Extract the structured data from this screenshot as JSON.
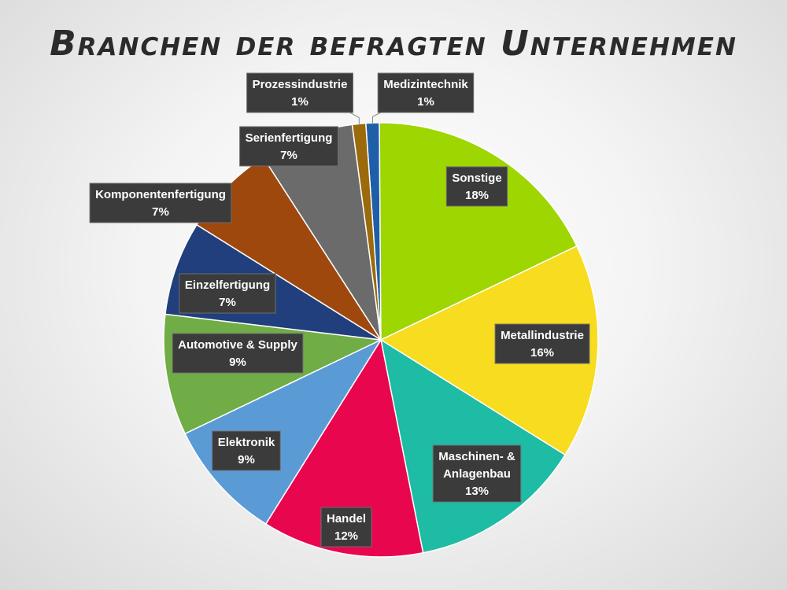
{
  "chart_data": {
    "type": "pie",
    "title": "Branchen der befragten Unternehmen",
    "slices": [
      {
        "label": "Medizintechnik",
        "lines": [
          "Medizintechnik"
        ],
        "value": 1,
        "percent_label": "1%",
        "color": "#1f5fa8"
      },
      {
        "label": "Sonstige",
        "lines": [
          "Sonstige"
        ],
        "value": 18,
        "percent_label": "18%",
        "color": "#9dd600"
      },
      {
        "label": "Metallindustrie",
        "lines": [
          "Metallindustrie"
        ],
        "value": 16,
        "percent_label": "16%",
        "color": "#f7dc1f"
      },
      {
        "label": "Maschinen- & Anlagenbau",
        "lines": [
          "Maschinen- &",
          "Anlagenbau"
        ],
        "value": 13,
        "percent_label": "13%",
        "color": "#1ebba5"
      },
      {
        "label": "Handel",
        "lines": [
          "Handel"
        ],
        "value": 12,
        "percent_label": "12%",
        "color": "#e8064f"
      },
      {
        "label": "Elektronik",
        "lines": [
          "Elektronik"
        ],
        "value": 9,
        "percent_label": "9%",
        "color": "#5b9bd5"
      },
      {
        "label": "Automotive & Supply",
        "lines": [
          "Automotive & Supply"
        ],
        "value": 9,
        "percent_label": "9%",
        "color": "#70ad47"
      },
      {
        "label": "Einzelfertigung",
        "lines": [
          "Einzelfertigung"
        ],
        "value": 7,
        "percent_label": "7%",
        "color": "#203f7c"
      },
      {
        "label": "Komponentenfertigung",
        "lines": [
          "Komponentenfertigung"
        ],
        "value": 7,
        "percent_label": "7%",
        "color": "#9e480e"
      },
      {
        "label": "Serienfertigung",
        "lines": [
          "Serienfertigung"
        ],
        "value": 7,
        "percent_label": "7%",
        "color": "#6b6b6b"
      },
      {
        "label": "Prozessindustrie",
        "lines": [
          "Prozessindustrie"
        ],
        "value": 1,
        "percent_label": "1%",
        "color": "#9b6a0a"
      }
    ],
    "legend": "none",
    "data_labels": "boxed"
  }
}
